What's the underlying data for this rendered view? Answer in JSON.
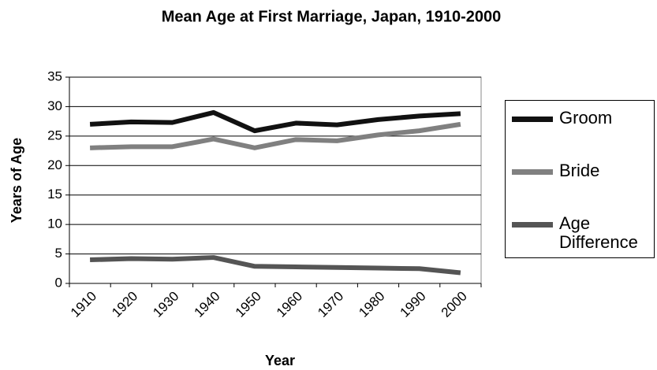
{
  "chart_data": {
    "type": "line",
    "title": "Mean Age at First Marriage, Japan, 1910-2000",
    "x_label": "Year",
    "y_label": "Years of Age",
    "categories": [
      "1910",
      "1920",
      "1930",
      "1940",
      "1950",
      "1960",
      "1970",
      "1980",
      "1990",
      "2000"
    ],
    "series": [
      {
        "name": "Groom",
        "color": "#111111",
        "values": [
          27.0,
          27.4,
          27.3,
          29.0,
          25.9,
          27.2,
          26.9,
          27.8,
          28.4,
          28.8
        ]
      },
      {
        "name": "Bride",
        "color": "#808080",
        "values": [
          23.0,
          23.2,
          23.2,
          24.5,
          23.0,
          24.4,
          24.2,
          25.2,
          25.9,
          27.0
        ]
      },
      {
        "name": "Age Difference",
        "color": "#555555",
        "values": [
          4.0,
          4.2,
          4.1,
          4.4,
          2.9,
          2.8,
          2.7,
          2.6,
          2.5,
          1.8
        ]
      }
    ],
    "ylim": [
      0,
      35
    ],
    "yticks": [
      0,
      5,
      10,
      15,
      20,
      25,
      30,
      35
    ],
    "grid": true,
    "legend": "right"
  }
}
